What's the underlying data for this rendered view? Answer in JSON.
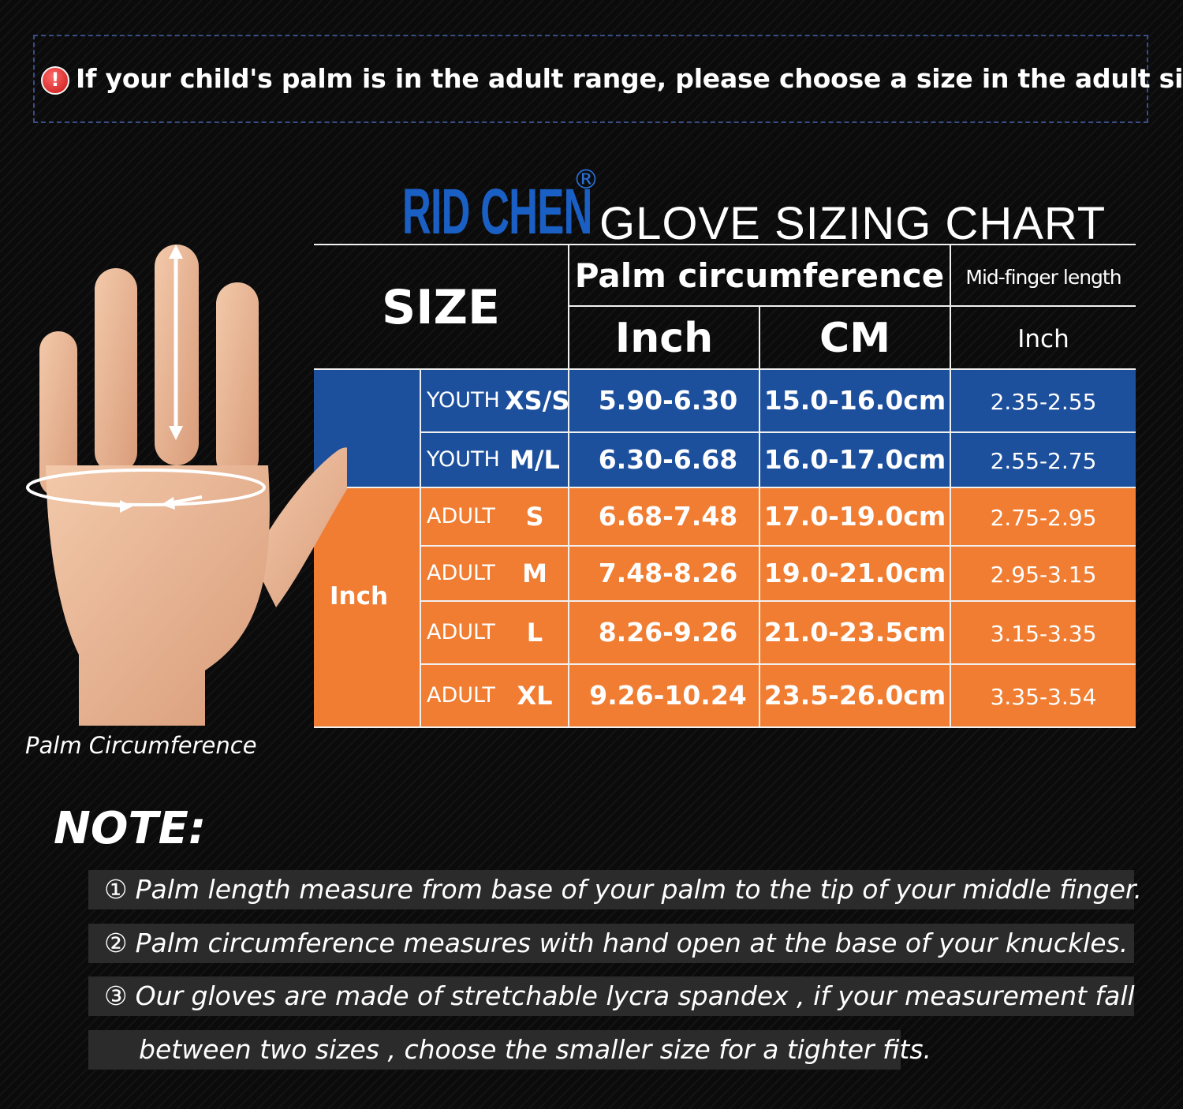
{
  "warning": {
    "icon": "exclamation-circle-icon",
    "icon_glyph": "!",
    "text": "If your child's palm is in the adult range, please choose a size in the adult size."
  },
  "brand": {
    "name": "RID CHEN",
    "registered": "®"
  },
  "chart": {
    "title": "GLOVE SIZING CHART",
    "headers": {
      "size": "SIZE",
      "palm": "Palm circumference",
      "finger": "Mid-finger length",
      "palm_inch": "Inch",
      "palm_cm": "CM",
      "finger_inch": "Inch"
    },
    "group_label": "Inch",
    "rows": [
      {
        "group": "YOUTH",
        "size": "XS/S",
        "inch": "5.90-6.30",
        "cm": "15.0-16.0cm",
        "finger": "2.35-2.55"
      },
      {
        "group": "YOUTH",
        "size": "M/L",
        "inch": "6.30-6.68",
        "cm": "16.0-17.0cm",
        "finger": "2.55-2.75"
      },
      {
        "group": "ADULT",
        "size": "S",
        "inch": "6.68-7.48",
        "cm": "17.0-19.0cm",
        "finger": "2.75-2.95"
      },
      {
        "group": "ADULT",
        "size": "M",
        "inch": "7.48-8.26",
        "cm": "19.0-21.0cm",
        "finger": "2.95-3.15"
      },
      {
        "group": "ADULT",
        "size": "L",
        "inch": "8.26-9.26",
        "cm": "21.0-23.5cm",
        "finger": "3.15-3.35"
      },
      {
        "group": "ADULT",
        "size": "XL",
        "inch": "9.26-10.24",
        "cm": "23.5-26.0cm",
        "finger": "3.35-3.54"
      }
    ],
    "colors": {
      "youth": "#1c4f9c",
      "adult": "#f07d32",
      "brand": "#1a5fc4"
    }
  },
  "hand_caption": "Palm Circumference",
  "notes": {
    "title": "NOTE:",
    "items": [
      {
        "num": "①",
        "text": "Palm length measure from base of your palm to the tip of your middle finger."
      },
      {
        "num": "②",
        "text": "Palm circumference measures with hand open at the base of your knuckles."
      },
      {
        "num": "③",
        "text": "Our gloves are made of stretchable lycra spandex , if your measurement fall"
      },
      {
        "num": "",
        "text": "between two sizes , choose the smaller size for a tighter fits."
      }
    ]
  }
}
